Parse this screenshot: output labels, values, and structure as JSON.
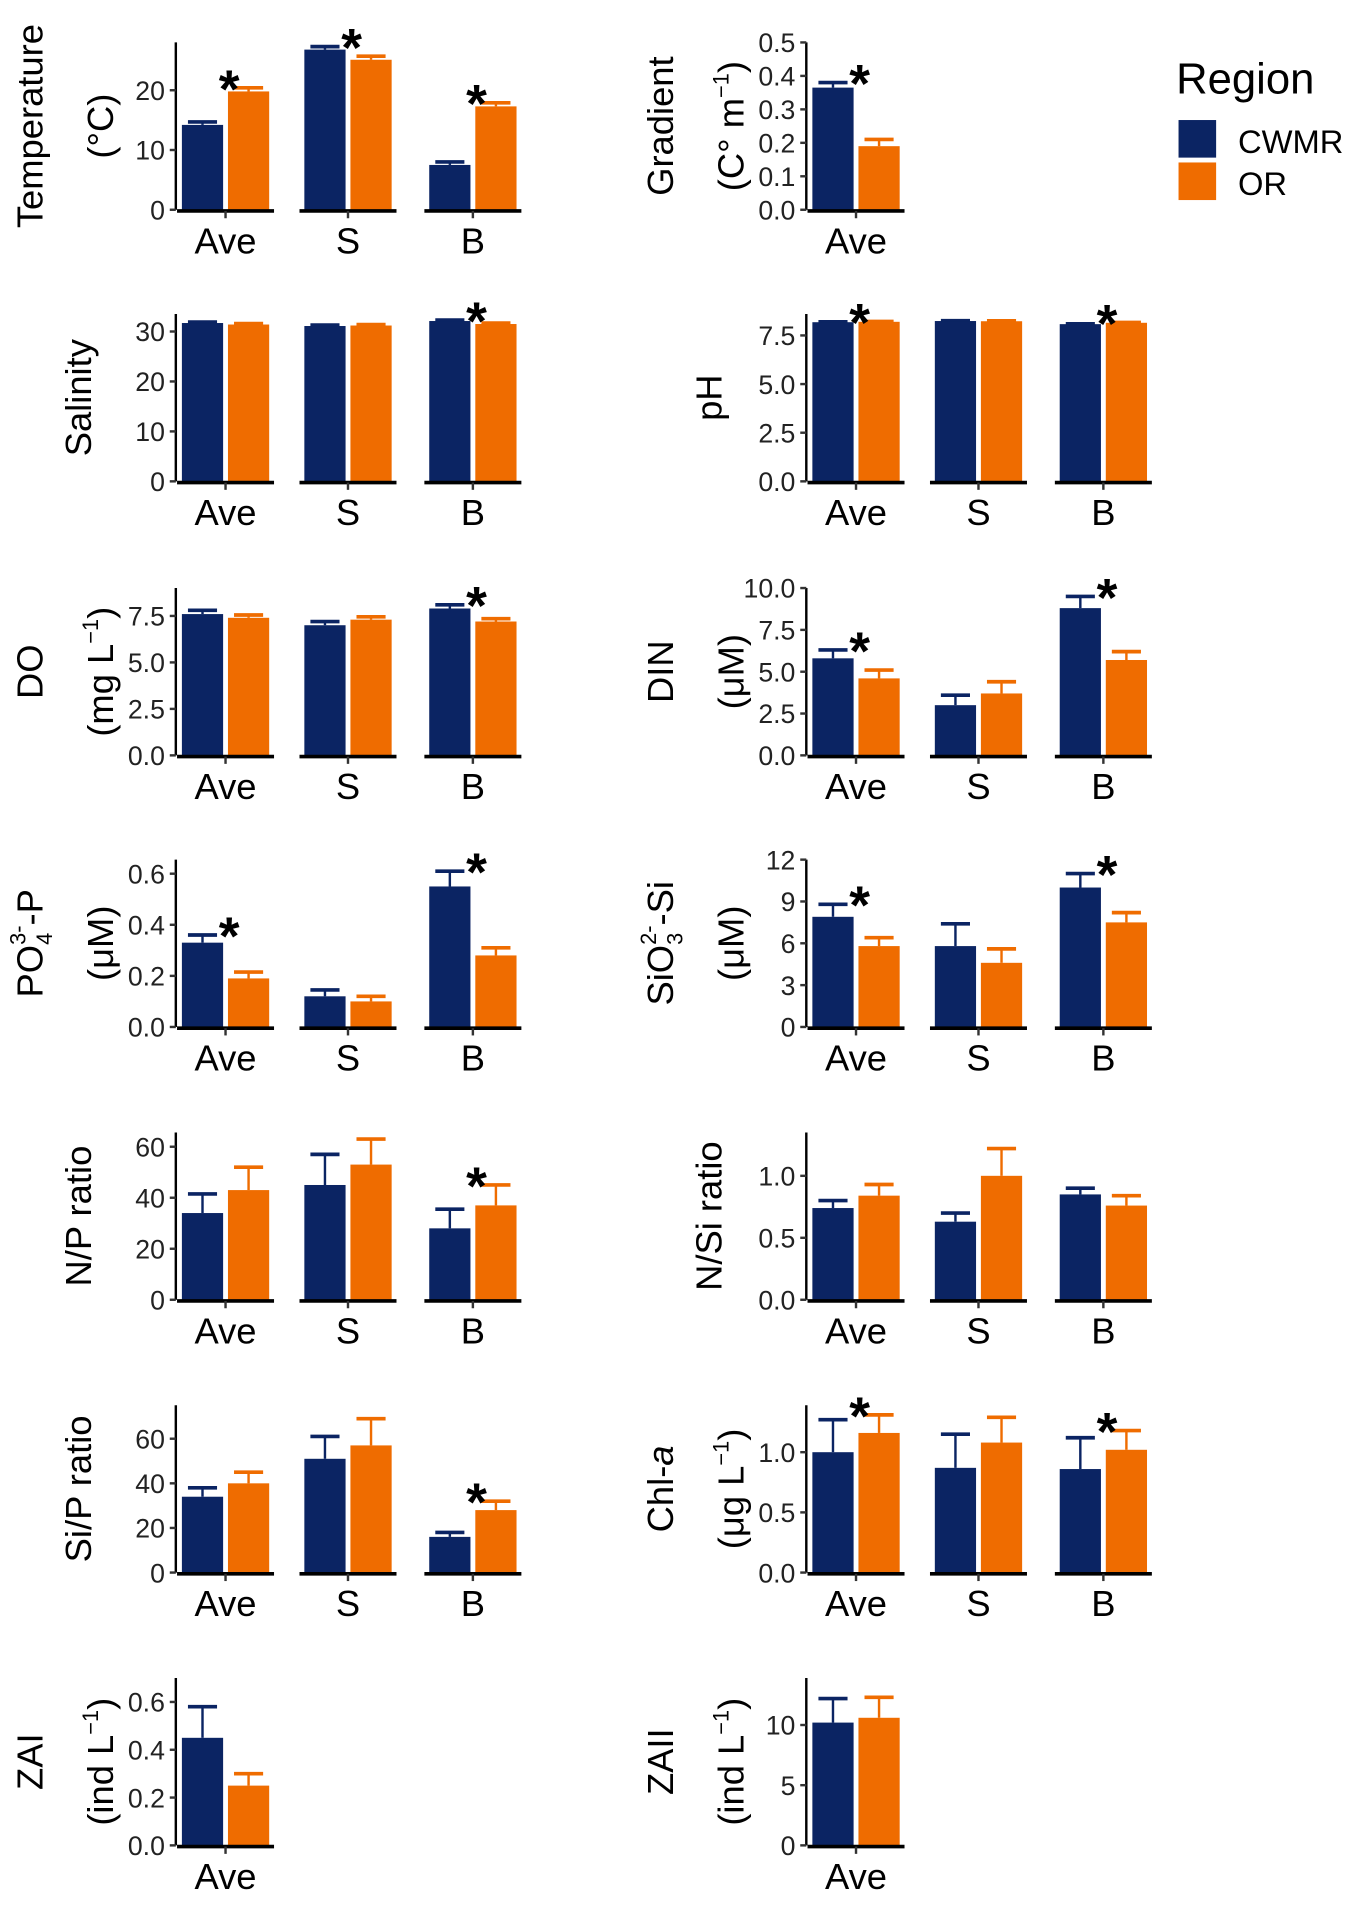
{
  "legend": {
    "title": "Region",
    "items": [
      {
        "label": "CWMR",
        "color": "#0b2463"
      },
      {
        "label": "OR",
        "color": "#ef6c00"
      }
    ]
  },
  "chart_data": [
    {
      "type": "bar",
      "title": "Temperature",
      "ylabel": [
        [
          {
            "t": "Temperature"
          }
        ],
        [
          {
            "t": "(°C)"
          }
        ]
      ],
      "categories": [
        "Ave",
        "S",
        "B"
      ],
      "ylim": [
        0,
        28
      ],
      "yticks": [
        "0",
        "10",
        "20"
      ],
      "ytick_values": [
        0,
        10,
        20
      ],
      "series": [
        {
          "name": "CWMR",
          "values": [
            14.2,
            26.8,
            7.5
          ],
          "errors": [
            0.5,
            0.5,
            0.5
          ]
        },
        {
          "name": "OR",
          "values": [
            19.8,
            25.1,
            17.3
          ],
          "errors": [
            0.6,
            0.6,
            0.6
          ]
        }
      ],
      "significant": [
        true,
        true,
        true
      ]
    },
    {
      "type": "bar",
      "title": "Gradient",
      "ylabel": [
        [
          {
            "t": "Gradient"
          }
        ],
        [
          {
            "t": "(C° m"
          },
          {
            "t": "−1",
            "s": "sup"
          },
          {
            "t": ")"
          }
        ]
      ],
      "categories": [
        "Ave"
      ],
      "ylim": [
        0,
        0.5
      ],
      "yticks": [
        "0.0",
        "0.1",
        "0.2",
        "0.3",
        "0.4",
        "0.5"
      ],
      "ytick_values": [
        0,
        0.1,
        0.2,
        0.3,
        0.4,
        0.5
      ],
      "series": [
        {
          "name": "CWMR",
          "values": [
            0.365
          ],
          "errors": [
            0.015
          ]
        },
        {
          "name": "OR",
          "values": [
            0.19
          ],
          "errors": [
            0.02
          ]
        }
      ],
      "significant": [
        true
      ]
    },
    {
      "type": "bar",
      "title": "Salinity",
      "ylabel": [
        [
          {
            "t": "Salinity"
          }
        ]
      ],
      "categories": [
        "Ave",
        "S",
        "B"
      ],
      "ylim": [
        0,
        33.5
      ],
      "yticks": [
        "0",
        "10",
        "20",
        "30"
      ],
      "ytick_values": [
        0,
        10,
        20,
        30
      ],
      "series": [
        {
          "name": "CWMR",
          "values": [
            31.7,
            31.1,
            32.1
          ],
          "errors": [
            0.2,
            0.2,
            0.2
          ]
        },
        {
          "name": "OR",
          "values": [
            31.4,
            31.2,
            31.5
          ],
          "errors": [
            0.2,
            0.2,
            0.2
          ]
        }
      ],
      "significant": [
        false,
        false,
        true
      ]
    },
    {
      "type": "bar",
      "title": "pH",
      "ylabel": [
        [
          {
            "t": "pH"
          }
        ]
      ],
      "categories": [
        "Ave",
        "S",
        "B"
      ],
      "ylim": [
        0,
        8.6
      ],
      "yticks": [
        "0.0",
        "2.5",
        "5.0",
        "7.5"
      ],
      "ytick_values": [
        0,
        2.5,
        5,
        7.5
      ],
      "series": [
        {
          "name": "CWMR",
          "values": [
            8.18,
            8.24,
            8.08
          ],
          "errors": [
            0.02,
            0.02,
            0.02
          ]
        },
        {
          "name": "OR",
          "values": [
            8.2,
            8.23,
            8.15
          ],
          "errors": [
            0.02,
            0.02,
            0.02
          ]
        }
      ],
      "significant": [
        true,
        false,
        true
      ]
    },
    {
      "type": "bar",
      "title": "DO",
      "ylabel": [
        [
          {
            "t": "DO"
          }
        ],
        [
          {
            "t": "(mg L"
          },
          {
            "t": "−1",
            "s": "sup"
          },
          {
            "t": ")"
          }
        ]
      ],
      "categories": [
        "Ave",
        "S",
        "B"
      ],
      "ylim": [
        0,
        9
      ],
      "yticks": [
        "0.0",
        "2.5",
        "5.0",
        "7.5"
      ],
      "ytick_values": [
        0,
        2.5,
        5,
        7.5
      ],
      "series": [
        {
          "name": "CWMR",
          "values": [
            7.6,
            7.0,
            7.9
          ],
          "errors": [
            0.2,
            0.2,
            0.2
          ]
        },
        {
          "name": "OR",
          "values": [
            7.4,
            7.3,
            7.2
          ],
          "errors": [
            0.15,
            0.15,
            0.15
          ]
        }
      ],
      "significant": [
        false,
        false,
        true
      ]
    },
    {
      "type": "bar",
      "title": "DIN",
      "ylabel": [
        [
          {
            "t": "DIN"
          }
        ],
        [
          {
            "t": "(μM)"
          }
        ]
      ],
      "categories": [
        "Ave",
        "S",
        "B"
      ],
      "ylim": [
        0,
        10
      ],
      "yticks": [
        "0.0",
        "2.5",
        "5.0",
        "7.5",
        "10.0"
      ],
      "ytick_values": [
        0,
        2.5,
        5,
        7.5,
        10
      ],
      "series": [
        {
          "name": "CWMR",
          "values": [
            5.8,
            3.0,
            8.8
          ],
          "errors": [
            0.5,
            0.6,
            0.7
          ]
        },
        {
          "name": "OR",
          "values": [
            4.6,
            3.7,
            5.7
          ],
          "errors": [
            0.5,
            0.7,
            0.5
          ]
        }
      ],
      "significant": [
        true,
        false,
        true
      ]
    },
    {
      "type": "bar",
      "title": "PO4-P",
      "ylabel": [
        [
          {
            "t": "PO"
          },
          {
            "t": "4",
            "s": "sub"
          },
          {
            "t": "3-",
            "s": "sup2"
          },
          {
            "t": "-P"
          }
        ],
        [
          {
            "t": "(μM)"
          }
        ]
      ],
      "categories": [
        "Ave",
        "S",
        "B"
      ],
      "ylim": [
        0,
        0.655
      ],
      "yticks": [
        "0.0",
        "0.2",
        "0.4",
        "0.6"
      ],
      "ytick_values": [
        0,
        0.2,
        0.4,
        0.6
      ],
      "series": [
        {
          "name": "CWMR",
          "values": [
            0.33,
            0.12,
            0.55
          ],
          "errors": [
            0.03,
            0.025,
            0.06
          ]
        },
        {
          "name": "OR",
          "values": [
            0.19,
            0.1,
            0.28
          ],
          "errors": [
            0.025,
            0.02,
            0.03
          ]
        }
      ],
      "significant": [
        true,
        false,
        true
      ]
    },
    {
      "type": "bar",
      "title": "SiO3-Si",
      "ylabel": [
        [
          {
            "t": "SiO"
          },
          {
            "t": "3",
            "s": "sub"
          },
          {
            "t": "2-",
            "s": "sup2"
          },
          {
            "t": "-Si"
          }
        ],
        [
          {
            "t": "(μM)"
          }
        ]
      ],
      "categories": [
        "Ave",
        "S",
        "B"
      ],
      "ylim": [
        0,
        12
      ],
      "yticks": [
        "0",
        "3",
        "6",
        "9",
        "12"
      ],
      "ytick_values": [
        0,
        3,
        6,
        9,
        12
      ],
      "series": [
        {
          "name": "CWMR",
          "values": [
            7.9,
            5.8,
            10.0
          ],
          "errors": [
            0.9,
            1.6,
            1.0
          ]
        },
        {
          "name": "OR",
          "values": [
            5.8,
            4.6,
            7.5
          ],
          "errors": [
            0.6,
            1.0,
            0.7
          ]
        }
      ],
      "significant": [
        true,
        false,
        true
      ]
    },
    {
      "type": "bar",
      "title": "N/P ratio",
      "ylabel": [
        [
          {
            "t": "N/P ratio"
          }
        ]
      ],
      "categories": [
        "Ave",
        "S",
        "B"
      ],
      "ylim": [
        0,
        65.6
      ],
      "yticks": [
        "0",
        "20",
        "40",
        "60"
      ],
      "ytick_values": [
        0,
        20,
        40,
        60
      ],
      "series": [
        {
          "name": "CWMR",
          "values": [
            34,
            45,
            28
          ],
          "errors": [
            7.5,
            12,
            7.5
          ]
        },
        {
          "name": "OR",
          "values": [
            43,
            53,
            37
          ],
          "errors": [
            9,
            10,
            8
          ]
        }
      ],
      "significant": [
        false,
        false,
        true
      ]
    },
    {
      "type": "bar",
      "title": "N/Si ratio",
      "ylabel": [
        [
          {
            "t": "N/Si ratio"
          }
        ]
      ],
      "categories": [
        "Ave",
        "S",
        "B"
      ],
      "ylim": [
        0,
        1.35
      ],
      "yticks": [
        "0.0",
        "0.5",
        "1.0"
      ],
      "ytick_values": [
        0,
        0.5,
        1.0
      ],
      "series": [
        {
          "name": "CWMR",
          "values": [
            0.74,
            0.63,
            0.85
          ],
          "errors": [
            0.06,
            0.07,
            0.05
          ]
        },
        {
          "name": "OR",
          "values": [
            0.84,
            1.0,
            0.76
          ],
          "errors": [
            0.09,
            0.22,
            0.08
          ]
        }
      ],
      "significant": [
        false,
        false,
        false
      ]
    },
    {
      "type": "bar",
      "title": "Si/P ratio",
      "ylabel": [
        [
          {
            "t": "Si/P ratio"
          }
        ]
      ],
      "categories": [
        "Ave",
        "S",
        "B"
      ],
      "ylim": [
        0,
        75
      ],
      "yticks": [
        "0",
        "20",
        "40",
        "60"
      ],
      "ytick_values": [
        0,
        20,
        40,
        60
      ],
      "series": [
        {
          "name": "CWMR",
          "values": [
            34,
            51,
            16
          ],
          "errors": [
            4,
            10,
            2
          ]
        },
        {
          "name": "OR",
          "values": [
            40,
            57,
            28
          ],
          "errors": [
            5,
            12,
            4
          ]
        }
      ],
      "significant": [
        false,
        false,
        true
      ]
    },
    {
      "type": "bar",
      "title": "Chl-a",
      "ylabel": [
        [
          {
            "t": "Chl-"
          },
          {
            "t": "a",
            "s": "it"
          }
        ],
        [
          {
            "t": "(μg L"
          },
          {
            "t": "−1",
            "s": "sup"
          },
          {
            "t": ")"
          }
        ]
      ],
      "categories": [
        "Ave",
        "S",
        "B"
      ],
      "ylim": [
        0,
        1.39
      ],
      "yticks": [
        "0.0",
        "0.5",
        "1.0"
      ],
      "ytick_values": [
        0,
        0.5,
        1.0
      ],
      "series": [
        {
          "name": "CWMR",
          "values": [
            1.0,
            0.87,
            0.86
          ],
          "errors": [
            0.27,
            0.28,
            0.26
          ]
        },
        {
          "name": "OR",
          "values": [
            1.16,
            1.08,
            1.02
          ],
          "errors": [
            0.15,
            0.21,
            0.16
          ]
        }
      ],
      "significant": [
        true,
        false,
        true
      ]
    },
    {
      "type": "bar",
      "title": "ZAI",
      "ylabel": [
        [
          {
            "t": "ZAI"
          }
        ],
        [
          {
            "t": "(ind L"
          },
          {
            "t": "−1",
            "s": "sup"
          },
          {
            "t": ")"
          }
        ]
      ],
      "categories": [
        "Ave"
      ],
      "ylim": [
        0,
        0.7
      ],
      "yticks": [
        "0.0",
        "0.2",
        "0.4",
        "0.6"
      ],
      "ytick_values": [
        0,
        0.2,
        0.4,
        0.6
      ],
      "series": [
        {
          "name": "CWMR",
          "values": [
            0.45
          ],
          "errors": [
            0.13
          ]
        },
        {
          "name": "OR",
          "values": [
            0.25
          ],
          "errors": [
            0.05
          ]
        }
      ],
      "significant": [
        false
      ]
    },
    {
      "type": "bar",
      "title": "ZAII",
      "ylabel": [
        [
          {
            "t": "ZAII"
          }
        ],
        [
          {
            "t": "(ind L"
          },
          {
            "t": "−1",
            "s": "sup"
          },
          {
            "t": ")"
          }
        ]
      ],
      "categories": [
        "Ave"
      ],
      "ylim": [
        0,
        13.9
      ],
      "yticks": [
        "0",
        "5",
        "10"
      ],
      "ytick_values": [
        0,
        5,
        10
      ],
      "series": [
        {
          "name": "CWMR",
          "values": [
            10.2
          ],
          "errors": [
            2.0
          ]
        },
        {
          "name": "OR",
          "values": [
            10.6
          ],
          "errors": [
            1.7
          ]
        }
      ],
      "significant": [
        false
      ]
    }
  ],
  "significance_marker": "*"
}
